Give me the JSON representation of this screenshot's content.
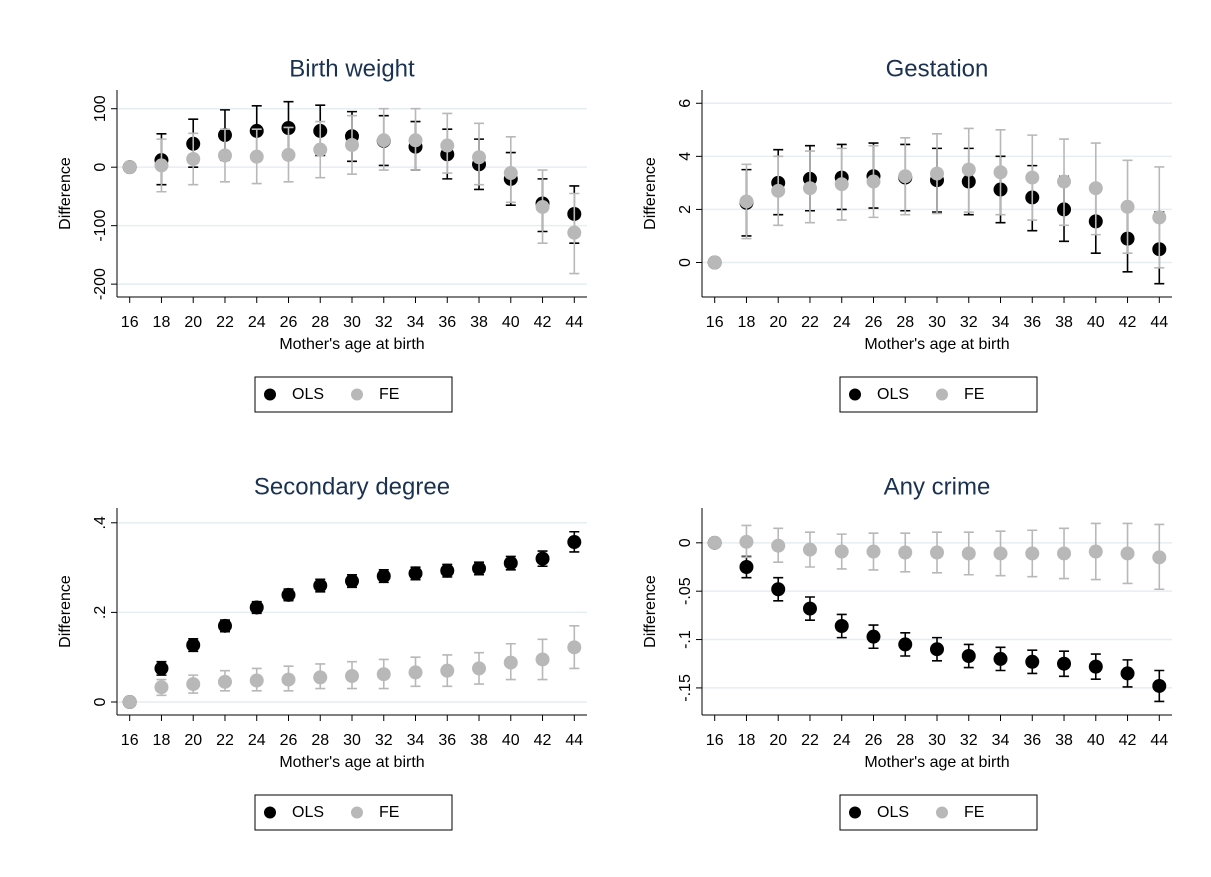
{
  "chart_data": [
    {
      "type": "scatter",
      "title": "Birth weight",
      "y_label": "Difference",
      "x_label": "Mother's age at birth",
      "x": [
        16,
        18,
        20,
        22,
        24,
        26,
        28,
        30,
        32,
        34,
        36,
        38,
        40,
        42,
        44
      ],
      "xlim": [
        15.2,
        44.8
      ],
      "xticks": [
        16,
        18,
        20,
        22,
        24,
        26,
        28,
        30,
        32,
        34,
        36,
        38,
        40,
        42,
        44
      ],
      "ylim": [
        -222,
        132
      ],
      "yticks": [
        -200,
        -100,
        0,
        100
      ],
      "grid": true,
      "series": [
        {
          "name": "OLS",
          "color": "#000000",
          "values": [
            0,
            12,
            40,
            55,
            62,
            67,
            62,
            53,
            45,
            35,
            22,
            5,
            -20,
            -62,
            -80
          ],
          "lower": [
            null,
            -30,
            0,
            12,
            18,
            22,
            20,
            10,
            3,
            -5,
            -20,
            -38,
            -65,
            -110,
            -130
          ],
          "upper": [
            null,
            57,
            82,
            98,
            105,
            112,
            106,
            95,
            88,
            78,
            65,
            48,
            25,
            -20,
            -32
          ]
        },
        {
          "name": "FE",
          "color": "#b8b8b8",
          "values": [
            0,
            3,
            14,
            20,
            18,
            21,
            30,
            38,
            46,
            46,
            37,
            17,
            -10,
            -68,
            -112
          ],
          "lower": [
            null,
            -42,
            -30,
            -25,
            -28,
            -25,
            -18,
            -12,
            -5,
            -5,
            -10,
            -30,
            -60,
            -130,
            -182
          ],
          "upper": [
            null,
            48,
            58,
            65,
            65,
            68,
            78,
            88,
            100,
            100,
            92,
            75,
            52,
            -5,
            -45
          ]
        }
      ]
    },
    {
      "type": "scatter",
      "title": "Gestation",
      "y_label": "Difference",
      "x_label": "Mother's age at birth",
      "x": [
        16,
        18,
        20,
        22,
        24,
        26,
        28,
        30,
        32,
        34,
        36,
        38,
        40,
        42,
        44
      ],
      "xlim": [
        15.2,
        44.8
      ],
      "xticks": [
        16,
        18,
        20,
        22,
        24,
        26,
        28,
        30,
        32,
        34,
        36,
        38,
        40,
        42,
        44
      ],
      "ylim": [
        -1.3,
        6.5
      ],
      "yticks": [
        0,
        2,
        4,
        6
      ],
      "grid": true,
      "series": [
        {
          "name": "OLS",
          "color": "#000000",
          "values": [
            0,
            2.25,
            3.0,
            3.15,
            3.2,
            3.25,
            3.2,
            3.1,
            3.05,
            2.75,
            2.45,
            2.0,
            1.55,
            0.9,
            0.5
          ],
          "lower": [
            null,
            1.0,
            1.8,
            1.95,
            2.0,
            2.05,
            1.95,
            1.9,
            1.8,
            1.5,
            1.2,
            0.8,
            0.35,
            -0.35,
            -0.8
          ],
          "upper": [
            null,
            3.5,
            4.25,
            4.4,
            4.45,
            4.5,
            4.45,
            4.3,
            4.3,
            4.0,
            3.65,
            3.25,
            2.8,
            2.15,
            1.9
          ]
        },
        {
          "name": "FE",
          "color": "#b8b8b8",
          "values": [
            0,
            2.3,
            2.7,
            2.8,
            2.95,
            3.05,
            3.25,
            3.35,
            3.5,
            3.4,
            3.2,
            3.05,
            2.8,
            2.1,
            1.7
          ],
          "lower": [
            null,
            0.9,
            1.4,
            1.5,
            1.6,
            1.7,
            1.8,
            1.85,
            1.9,
            1.8,
            1.6,
            1.4,
            1.05,
            0.35,
            -0.2
          ],
          "upper": [
            null,
            3.7,
            4.0,
            4.2,
            4.3,
            4.4,
            4.7,
            4.85,
            5.05,
            5.0,
            4.8,
            4.65,
            4.5,
            3.85,
            3.6
          ]
        }
      ]
    },
    {
      "type": "scatter",
      "title": "Secondary degree",
      "y_label": "Difference",
      "x_label": "Mother's age at birth",
      "x": [
        16,
        18,
        20,
        22,
        24,
        26,
        28,
        30,
        32,
        34,
        36,
        38,
        40,
        42,
        44
      ],
      "xlim": [
        15.2,
        44.8
      ],
      "xticks": [
        16,
        18,
        20,
        22,
        24,
        26,
        28,
        30,
        32,
        34,
        36,
        38,
        40,
        42,
        44
      ],
      "ylim": [
        -0.029,
        0.433
      ],
      "yticks": [
        0,
        {
          "value": 0.2,
          "label": ".2"
        },
        {
          "value": 0.4,
          "label": ".4"
        }
      ],
      "grid": true,
      "series": [
        {
          "name": "OLS",
          "color": "#000000",
          "values": [
            0,
            0.075,
            0.127,
            0.17,
            0.211,
            0.239,
            0.26,
            0.27,
            0.281,
            0.287,
            0.293,
            0.298,
            0.31,
            0.32,
            0.357
          ],
          "lower": [
            null,
            0.06,
            0.113,
            0.157,
            0.198,
            0.226,
            0.246,
            0.256,
            0.267,
            0.273,
            0.279,
            0.284,
            0.295,
            0.303,
            0.335
          ],
          "upper": [
            null,
            0.09,
            0.141,
            0.183,
            0.224,
            0.252,
            0.274,
            0.284,
            0.295,
            0.301,
            0.307,
            0.312,
            0.325,
            0.337,
            0.38
          ]
        },
        {
          "name": "FE",
          "color": "#b8b8b8",
          "values": [
            0,
            0.033,
            0.04,
            0.045,
            0.048,
            0.05,
            0.055,
            0.058,
            0.062,
            0.066,
            0.07,
            0.075,
            0.088,
            0.095,
            0.122
          ],
          "lower": [
            null,
            0.015,
            0.02,
            0.025,
            0.025,
            0.025,
            0.03,
            0.03,
            0.03,
            0.035,
            0.035,
            0.04,
            0.05,
            0.05,
            0.075
          ],
          "upper": [
            null,
            0.05,
            0.06,
            0.07,
            0.075,
            0.08,
            0.085,
            0.09,
            0.095,
            0.1,
            0.105,
            0.11,
            0.13,
            0.14,
            0.17
          ]
        }
      ]
    },
    {
      "type": "scatter",
      "title": "Any crime",
      "y_label": "Difference",
      "x_label": "Mother's age at birth",
      "x": [
        16,
        18,
        20,
        22,
        24,
        26,
        28,
        30,
        32,
        34,
        36,
        38,
        40,
        42,
        44
      ],
      "xlim": [
        15.2,
        44.8
      ],
      "xticks": [
        16,
        18,
        20,
        22,
        24,
        26,
        28,
        30,
        32,
        34,
        36,
        38,
        40,
        42,
        44
      ],
      "ylim": [
        -0.178,
        0.036
      ],
      "yticks": [
        {
          "value": -0.15,
          "label": "-.15"
        },
        {
          "value": -0.1,
          "label": "-.1"
        },
        {
          "value": -0.05,
          "label": "-.05"
        },
        0
      ],
      "grid": true,
      "series": [
        {
          "name": "OLS",
          "color": "#000000",
          "values": [
            0,
            -0.025,
            -0.048,
            -0.068,
            -0.086,
            -0.097,
            -0.105,
            -0.11,
            -0.117,
            -0.12,
            -0.123,
            -0.125,
            -0.128,
            -0.135,
            -0.148
          ],
          "lower": [
            null,
            -0.036,
            -0.06,
            -0.08,
            -0.098,
            -0.109,
            -0.117,
            -0.122,
            -0.129,
            -0.132,
            -0.135,
            -0.138,
            -0.141,
            -0.149,
            -0.164
          ],
          "upper": [
            null,
            -0.014,
            -0.036,
            -0.056,
            -0.074,
            -0.085,
            -0.093,
            -0.098,
            -0.105,
            -0.108,
            -0.111,
            -0.112,
            -0.115,
            -0.121,
            -0.132
          ]
        },
        {
          "name": "FE",
          "color": "#b8b8b8",
          "values": [
            0,
            0.001,
            -0.003,
            -0.007,
            -0.009,
            -0.009,
            -0.01,
            -0.01,
            -0.011,
            -0.011,
            -0.011,
            -0.011,
            -0.009,
            -0.011,
            -0.015
          ],
          "lower": [
            null,
            -0.015,
            -0.02,
            -0.025,
            -0.027,
            -0.028,
            -0.03,
            -0.031,
            -0.033,
            -0.034,
            -0.035,
            -0.037,
            -0.038,
            -0.042,
            -0.048
          ],
          "upper": [
            null,
            0.018,
            0.015,
            0.011,
            0.009,
            0.01,
            0.01,
            0.011,
            0.011,
            0.012,
            0.013,
            0.015,
            0.02,
            0.02,
            0.019
          ]
        }
      ]
    }
  ]
}
